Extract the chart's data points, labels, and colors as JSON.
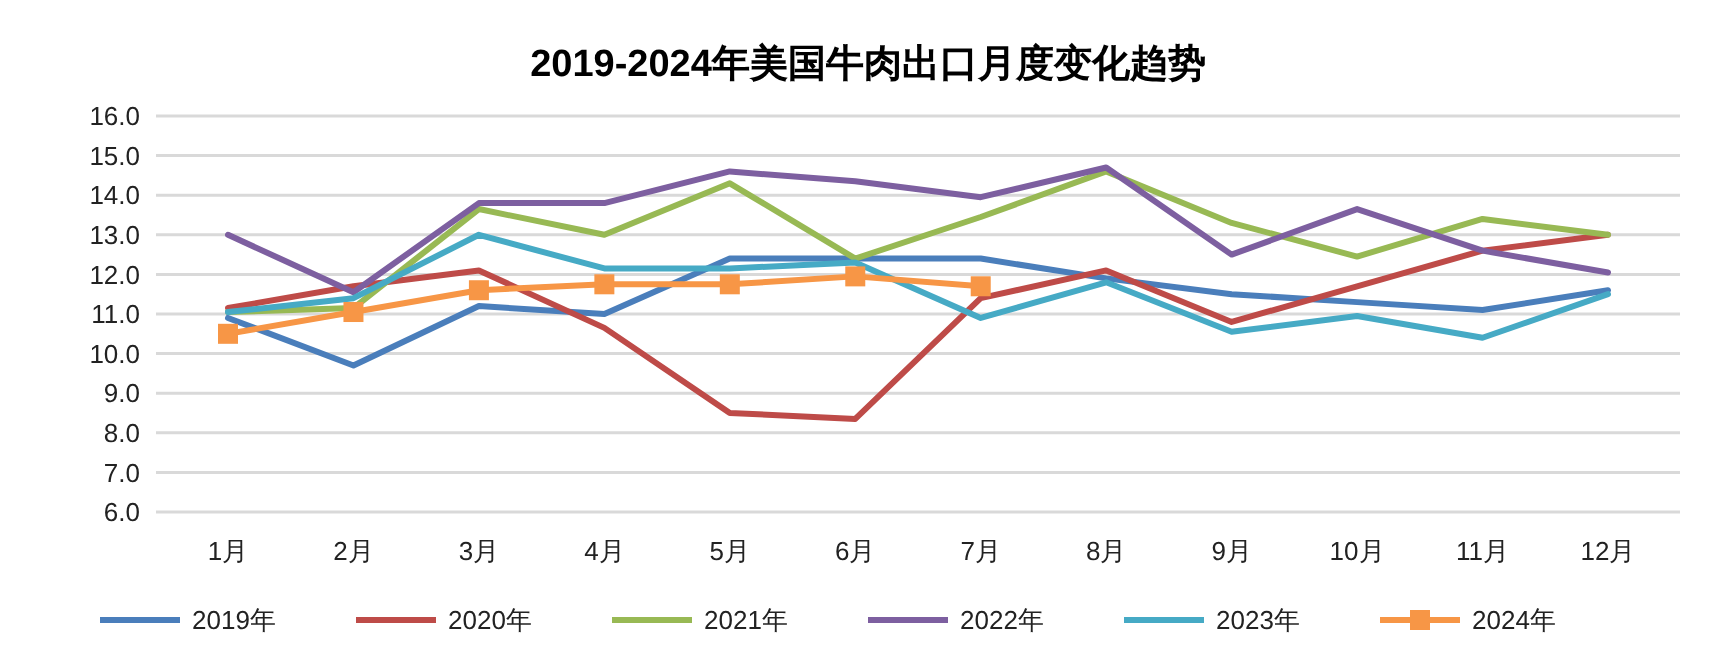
{
  "chart_data": {
    "type": "line",
    "title": "2019-2024年美国牛肉出口月度变化趋势",
    "categories": [
      "1月",
      "2月",
      "3月",
      "4月",
      "5月",
      "6月",
      "7月",
      "8月",
      "9月",
      "10月",
      "11月",
      "12月"
    ],
    "ylim": [
      6,
      16
    ],
    "yticks": [
      {
        "value": 6,
        "label": "6.0"
      },
      {
        "value": 7,
        "label": "7.0"
      },
      {
        "value": 8,
        "label": "8.0"
      },
      {
        "value": 9,
        "label": "9.0"
      },
      {
        "value": 10,
        "label": "10.0"
      },
      {
        "value": 11,
        "label": "11.0"
      },
      {
        "value": 12,
        "label": "12.0"
      },
      {
        "value": 13,
        "label": "13.0"
      },
      {
        "value": 14,
        "label": "14.0"
      },
      {
        "value": 15,
        "label": "15.0"
      },
      {
        "value": 16,
        "label": "16.0"
      }
    ],
    "grid": "y",
    "legend": "bottom",
    "marker": "none",
    "series": [
      {
        "name": "2019年",
        "color": "#4a7ebb",
        "values": [
          10.9,
          9.7,
          11.2,
          11.0,
          12.4,
          12.4,
          12.4,
          11.9,
          11.5,
          11.3,
          11.1,
          11.6
        ]
      },
      {
        "name": "2020年",
        "color": "#be4b48",
        "values": [
          11.15,
          11.7,
          12.1,
          10.65,
          8.5,
          8.35,
          11.4,
          12.1,
          10.8,
          11.7,
          12.6,
          13.0
        ]
      },
      {
        "name": "2021年",
        "color": "#98b954",
        "values": [
          11.05,
          11.15,
          13.65,
          13.0,
          14.3,
          12.4,
          13.45,
          14.6,
          13.3,
          12.45,
          13.4,
          13.0
        ]
      },
      {
        "name": "2022年",
        "color": "#7d5fa0",
        "values": [
          13.0,
          11.55,
          13.8,
          13.8,
          14.6,
          14.35,
          13.95,
          14.7,
          12.5,
          13.65,
          12.6,
          12.05
        ]
      },
      {
        "name": "2023年",
        "color": "#46aac5",
        "values": [
          11.05,
          11.4,
          13.0,
          12.15,
          12.15,
          12.3,
          10.9,
          11.8,
          10.55,
          10.95,
          10.4,
          11.5
        ]
      },
      {
        "name": "2024年",
        "color": "#f79646",
        "marker": "square",
        "values": [
          10.5,
          11.05,
          11.6,
          11.75,
          11.75,
          11.95,
          11.7,
          null,
          null,
          null,
          null,
          null
        ]
      }
    ]
  }
}
